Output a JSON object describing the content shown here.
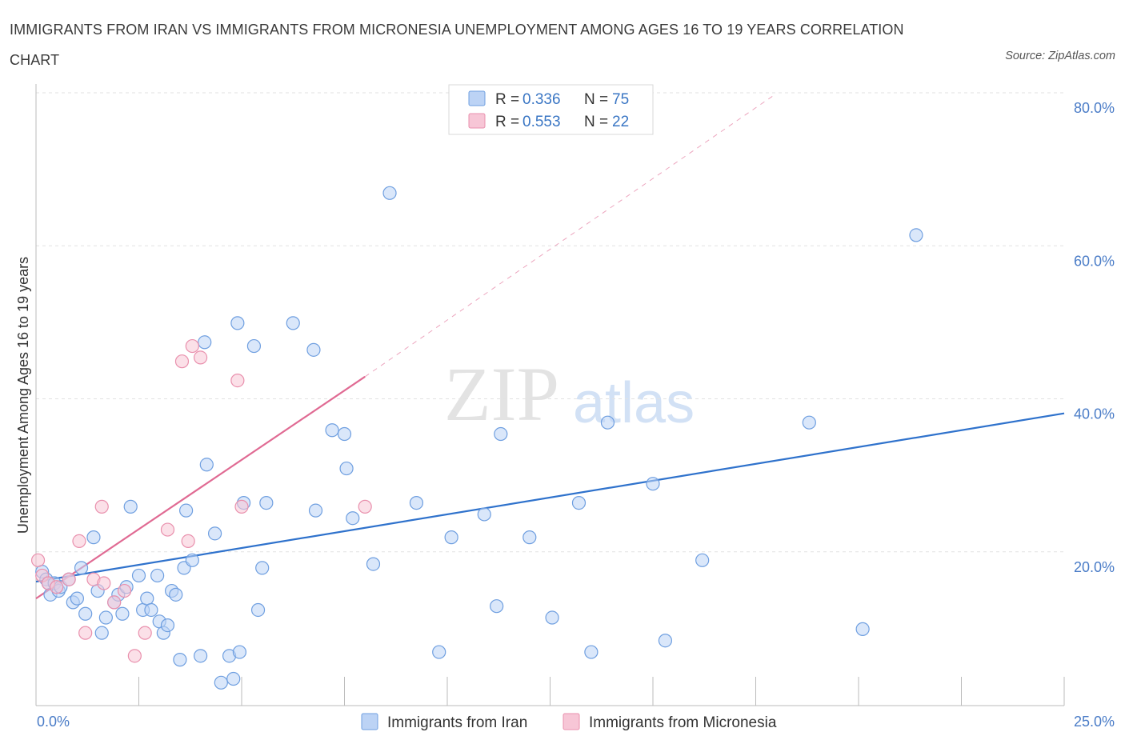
{
  "header": {
    "title": "IMMIGRANTS FROM IRAN VS IMMIGRANTS FROM MICRONESIA UNEMPLOYMENT AMONG AGES 16 TO 19 YEARS CORRELATION CHART",
    "source": "Source: ZipAtlas.com"
  },
  "colors": {
    "iran": "#6f9fe0",
    "iran_fill": "#bcd3f5",
    "iran_line": "#2f72cc",
    "micronesia": "#e990ad",
    "micronesia_fill": "#f7c6d6",
    "micronesia_line": "#e06a93"
  },
  "watermark": {
    "zip": "ZIP",
    "atlas": "atlas"
  },
  "legend": {
    "rows": [
      {
        "r_label": "R =",
        "r_value": "0.336",
        "n_label": "N =",
        "n_value": "75"
      },
      {
        "r_label": "R =",
        "r_value": "0.553",
        "n_label": "N =",
        "n_value": "22"
      }
    ]
  },
  "chart_data": {
    "type": "scatter",
    "title": "IMMIGRANTS FROM IRAN VS IMMIGRANTS FROM MICRONESIA UNEMPLOYMENT AMONG AGES 16 TO 19 YEARS CORRELATION CHART",
    "xlabel": "",
    "ylabel": "Unemployment Among Ages 16 to 19 years",
    "xlim": [
      0,
      25
    ],
    "ylim": [
      0,
      80
    ],
    "x_tick_labels": [
      "0.0%",
      "25.0%"
    ],
    "y_ticks": [
      20,
      40,
      60,
      80
    ],
    "y_tick_labels": [
      "20.0%",
      "40.0%",
      "60.0%",
      "80.0%"
    ],
    "legend_position": "top-center",
    "series": [
      {
        "name": "Immigrants from Iran",
        "R": 0.336,
        "N": 75,
        "trend": {
          "x0": 0,
          "y0": 16.2,
          "x1": 25,
          "y1": 38.2
        },
        "points": [
          [
            0.15,
            17.5
          ],
          [
            0.25,
            16.5
          ],
          [
            0.3,
            16.0
          ],
          [
            0.35,
            14.5
          ],
          [
            0.45,
            16.0
          ],
          [
            0.55,
            15.0
          ],
          [
            0.6,
            15.5
          ],
          [
            0.8,
            16.5
          ],
          [
            0.9,
            13.5
          ],
          [
            1.0,
            14.0
          ],
          [
            1.1,
            18.0
          ],
          [
            1.2,
            12.0
          ],
          [
            1.4,
            22.0
          ],
          [
            1.5,
            15.0
          ],
          [
            1.6,
            9.5
          ],
          [
            1.7,
            11.5
          ],
          [
            1.9,
            13.5
          ],
          [
            2.0,
            14.5
          ],
          [
            2.1,
            12.0
          ],
          [
            2.2,
            15.5
          ],
          [
            2.3,
            26.0
          ],
          [
            2.5,
            17.0
          ],
          [
            2.6,
            12.5
          ],
          [
            2.7,
            14.0
          ],
          [
            2.8,
            12.5
          ],
          [
            2.95,
            17.0
          ],
          [
            3.0,
            11.0
          ],
          [
            3.1,
            9.5
          ],
          [
            3.2,
            10.5
          ],
          [
            3.3,
            15.0
          ],
          [
            3.4,
            14.5
          ],
          [
            3.5,
            6.0
          ],
          [
            3.6,
            18.0
          ],
          [
            3.65,
            25.5
          ],
          [
            3.8,
            19.0
          ],
          [
            4.0,
            6.5
          ],
          [
            4.1,
            47.5
          ],
          [
            4.15,
            31.5
          ],
          [
            4.35,
            22.5
          ],
          [
            4.5,
            3.0
          ],
          [
            4.7,
            6.5
          ],
          [
            4.8,
            3.5
          ],
          [
            4.9,
            50.0
          ],
          [
            4.95,
            7.0
          ],
          [
            5.05,
            26.5
          ],
          [
            5.3,
            47.0
          ],
          [
            5.4,
            12.5
          ],
          [
            5.5,
            18.0
          ],
          [
            5.6,
            26.5
          ],
          [
            6.25,
            50.0
          ],
          [
            6.75,
            46.5
          ],
          [
            6.8,
            25.5
          ],
          [
            7.2,
            36.0
          ],
          [
            7.5,
            35.5
          ],
          [
            7.55,
            31.0
          ],
          [
            7.7,
            24.5
          ],
          [
            8.2,
            18.5
          ],
          [
            8.6,
            67.0
          ],
          [
            9.25,
            26.5
          ],
          [
            9.8,
            7.0
          ],
          [
            10.1,
            22.0
          ],
          [
            10.9,
            25.0
          ],
          [
            11.2,
            13.0
          ],
          [
            11.3,
            35.5
          ],
          [
            12.0,
            22.0
          ],
          [
            12.55,
            11.5
          ],
          [
            13.2,
            26.5
          ],
          [
            13.5,
            7.0
          ],
          [
            13.9,
            37.0
          ],
          [
            15.0,
            29.0
          ],
          [
            15.3,
            8.5
          ],
          [
            16.2,
            19.0
          ],
          [
            18.8,
            37.0
          ],
          [
            20.1,
            10.0
          ],
          [
            21.4,
            61.5
          ]
        ]
      },
      {
        "name": "Immigrants from Micronesia",
        "R": 0.553,
        "N": 22,
        "trend": {
          "x0": 0,
          "y0": 14.0,
          "x1": 8.0,
          "y1": 43.0,
          "dashed_to": {
            "x": 18.0,
            "y": 80.0
          }
        },
        "points": [
          [
            0.05,
            19.0
          ],
          [
            0.15,
            17.0
          ],
          [
            0.3,
            16.0
          ],
          [
            0.5,
            15.5
          ],
          [
            0.8,
            16.5
          ],
          [
            1.05,
            21.5
          ],
          [
            1.2,
            9.5
          ],
          [
            1.4,
            16.5
          ],
          [
            1.6,
            26.0
          ],
          [
            1.65,
            16.0
          ],
          [
            1.9,
            13.5
          ],
          [
            2.15,
            15.0
          ],
          [
            2.4,
            6.5
          ],
          [
            2.65,
            9.5
          ],
          [
            3.2,
            23.0
          ],
          [
            3.55,
            45.0
          ],
          [
            3.7,
            21.5
          ],
          [
            3.8,
            47.0
          ],
          [
            4.0,
            45.5
          ],
          [
            4.9,
            42.5
          ],
          [
            5.0,
            26.0
          ],
          [
            8.0,
            26.0
          ]
        ]
      }
    ]
  },
  "bottom_legend": {
    "items": [
      {
        "label": "Immigrants from Iran"
      },
      {
        "label": "Immigrants from Micronesia"
      }
    ]
  }
}
